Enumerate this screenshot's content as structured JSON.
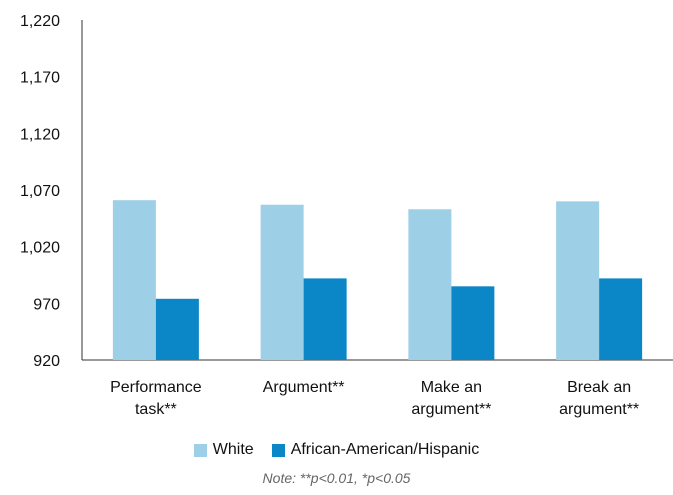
{
  "chart_data": {
    "type": "bar",
    "categories": [
      [
        "Performance",
        "task**"
      ],
      [
        "Argument**"
      ],
      [
        "Make an",
        "argument**"
      ],
      [
        "Break an",
        "argument**"
      ]
    ],
    "series": [
      {
        "name": "White",
        "values": [
          1061,
          1057,
          1053,
          1060
        ]
      },
      {
        "name": "African-American/Hispanic",
        "values": [
          974,
          992,
          985,
          992
        ]
      }
    ],
    "ylim": [
      920,
      1220
    ],
    "yticks": [
      "920",
      "970",
      "1,020",
      "1,070",
      "1,120",
      "1,170",
      "1,220"
    ],
    "ytick_values": [
      920,
      970,
      1020,
      1070,
      1120,
      1170,
      1220
    ],
    "colors": {
      "White": "#9dcfe6",
      "African-American/Hispanic": "#0b86c6"
    },
    "grid": false,
    "legend_position": "bottom-center",
    "note": "Note: **p<0.01, *p<0.05"
  }
}
